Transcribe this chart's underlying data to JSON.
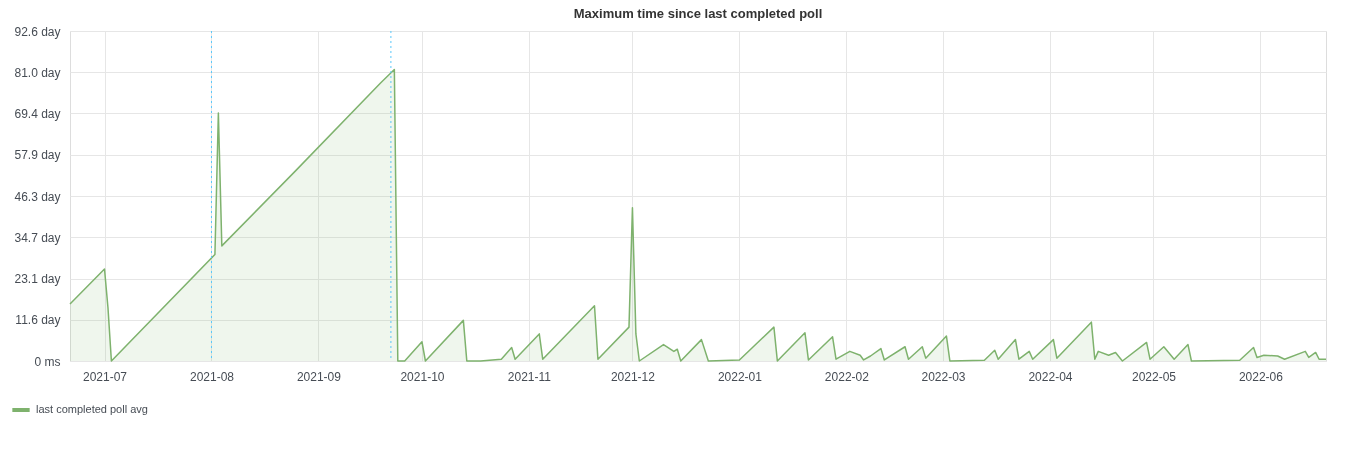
{
  "chart_data": {
    "type": "area",
    "title": "Maximum time since last completed poll",
    "x": [
      "2021-06-21",
      "2021-07-01",
      "2021-07-02",
      "2021-07-03",
      "2021-08-02",
      "2021-08-03",
      "2021-08-04",
      "2021-08-25",
      "2021-09-19",
      "2021-09-23",
      "2021-09-24",
      "2021-09-26",
      "2021-10-01",
      "2021-10-02",
      "2021-10-13",
      "2021-10-14",
      "2021-10-18",
      "2021-10-24",
      "2021-10-27",
      "2021-10-28",
      "2021-11-04",
      "2021-11-05",
      "2021-11-20",
      "2021-11-21",
      "2021-11-30",
      "2021-12-01",
      "2021-12-02",
      "2021-12-03",
      "2021-12-10",
      "2021-12-13",
      "2021-12-14",
      "2021-12-15",
      "2021-12-21",
      "2021-12-23",
      "2022-01-01",
      "2022-01-11",
      "2022-01-12",
      "2022-01-20",
      "2022-01-21",
      "2022-01-28",
      "2022-01-29",
      "2022-02-02",
      "2022-02-05",
      "2022-02-06",
      "2022-02-08",
      "2022-02-11",
      "2022-02-12",
      "2022-02-18",
      "2022-02-19",
      "2022-02-23",
      "2022-02-24",
      "2022-03-02",
      "2022-03-03",
      "2022-03-13",
      "2022-03-16",
      "2022-03-17",
      "2022-03-22",
      "2022-03-23",
      "2022-03-26",
      "2022-03-27",
      "2022-04-02",
      "2022-04-03",
      "2022-04-13",
      "2022-04-14",
      "2022-04-15",
      "2022-04-18",
      "2022-04-20",
      "2022-04-22",
      "2022-04-29",
      "2022-04-30",
      "2022-05-04",
      "2022-05-07",
      "2022-05-11",
      "2022-05-12",
      "2022-05-26",
      "2022-05-30",
      "2022-05-31",
      "2022-06-02",
      "2022-06-06",
      "2022-06-08",
      "2022-06-14",
      "2022-06-15",
      "2022-06-17",
      "2022-06-18",
      "2022-06-20"
    ],
    "series": [
      {
        "name": "last completed poll avg",
        "color": "#7eb26d",
        "values": [
          16.0,
          25.8,
          15.0,
          0,
          29.9,
          69.6,
          32.3,
          53.0,
          78.0,
          81.8,
          0,
          0,
          5.4,
          0,
          11.4,
          0,
          0,
          0.5,
          3.8,
          0.5,
          7.6,
          0.5,
          15.5,
          0.5,
          9.5,
          43.0,
          7.6,
          0,
          4.6,
          2.7,
          3.3,
          0,
          6.0,
          0,
          0.3,
          9.5,
          0,
          7.9,
          0.3,
          6.8,
          0.5,
          2.7,
          1.6,
          0.3,
          1.4,
          3.5,
          0.3,
          4.0,
          0.5,
          4.0,
          0.8,
          7.0,
          0,
          0.2,
          3.0,
          0.5,
          6.0,
          0.5,
          2.7,
          0.5,
          6.0,
          0.8,
          10.9,
          0.5,
          2.7,
          1.6,
          2.4,
          0,
          5.2,
          0.5,
          4.0,
          0.5,
          4.6,
          0,
          0.2,
          3.8,
          1.0,
          1.6,
          1.4,
          0.5,
          2.7,
          1.0,
          2.4,
          0.5,
          0.5
        ]
      }
    ],
    "xlim": [
      "2021-06-21",
      "2022-06-20"
    ],
    "xticks": [
      "2021-07",
      "2021-08",
      "2021-09",
      "2021-10",
      "2021-11",
      "2021-12",
      "2022-01",
      "2022-02",
      "2022-03",
      "2022-04",
      "2022-05",
      "2022-06"
    ],
    "ylim": [
      0,
      92.6
    ],
    "yticks": [
      {
        "value": 0,
        "label": "0 ms"
      },
      {
        "value": 11.575,
        "label": "11.6 day"
      },
      {
        "value": 23.15,
        "label": "23.1 day"
      },
      {
        "value": 34.725,
        "label": "34.7 day"
      },
      {
        "value": 46.3,
        "label": "46.3 day"
      },
      {
        "value": 57.875,
        "label": "57.9 day"
      },
      {
        "value": 69.45,
        "label": "69.4 day"
      },
      {
        "value": 81.025,
        "label": "81.0 day"
      },
      {
        "value": 92.6,
        "label": "92.6 day"
      }
    ],
    "ref_lines": [
      {
        "axis": "x",
        "value": "2021-08-01",
        "color": "#5ac8fa",
        "line_style": "dotted"
      },
      {
        "axis": "x",
        "value": "2021-09-22",
        "color": "#5ac8fa",
        "line_style": "dotted"
      }
    ],
    "grid": true,
    "legend": "bottom left",
    "line_style": "solid",
    "marker": "none"
  }
}
